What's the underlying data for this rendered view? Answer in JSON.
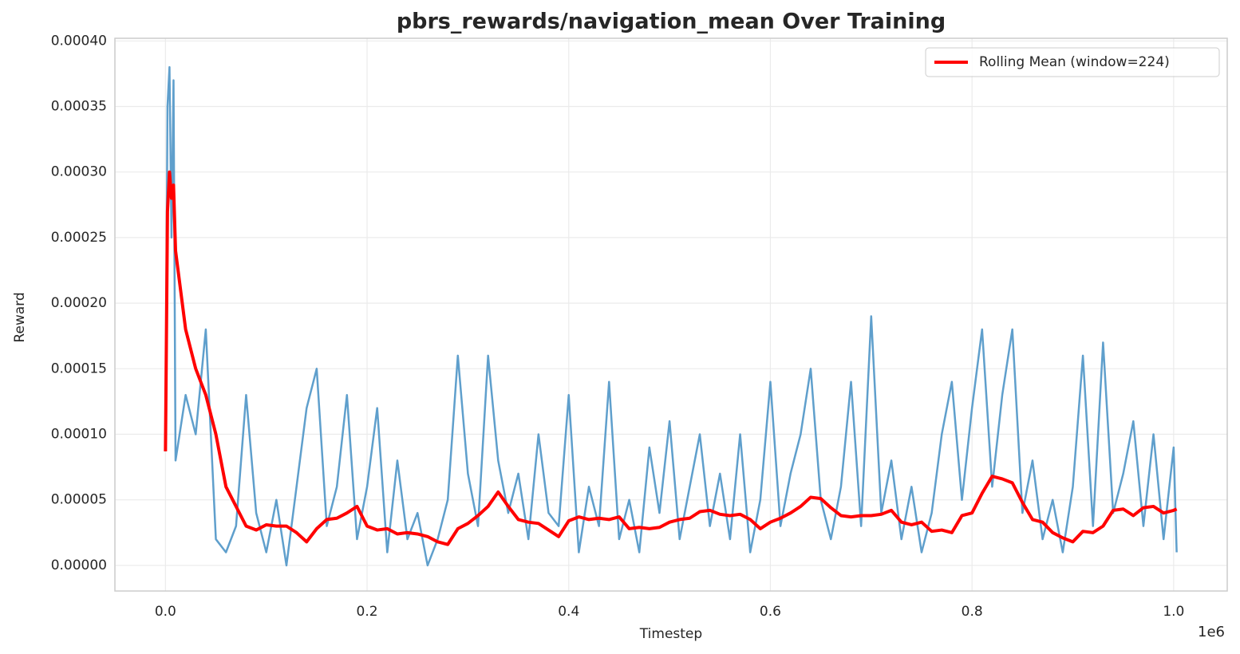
{
  "chart_data": {
    "type": "line",
    "title": "pbrs_rewards/navigation_mean Over Training",
    "x_label": "Timestep",
    "y_label": "Reward",
    "x_offset_label": "1e6",
    "x": [
      0,
      2000,
      4000,
      6000,
      8000,
      10000,
      20000,
      30000,
      40000,
      50000,
      60000,
      70000,
      80000,
      90000,
      100000,
      110000,
      120000,
      130000,
      140000,
      150000,
      160000,
      170000,
      180000,
      190000,
      200000,
      210000,
      220000,
      230000,
      240000,
      250000,
      260000,
      270000,
      280000,
      290000,
      300000,
      310000,
      320000,
      330000,
      340000,
      350000,
      360000,
      370000,
      380000,
      390000,
      400000,
      410000,
      420000,
      430000,
      440000,
      450000,
      460000,
      470000,
      480000,
      490000,
      500000,
      510000,
      520000,
      530000,
      540000,
      550000,
      560000,
      570000,
      580000,
      590000,
      600000,
      610000,
      620000,
      630000,
      640000,
      650000,
      660000,
      670000,
      680000,
      690000,
      700000,
      710000,
      720000,
      730000,
      740000,
      750000,
      760000,
      770000,
      780000,
      790000,
      800000,
      810000,
      820000,
      830000,
      840000,
      850000,
      860000,
      870000,
      880000,
      890000,
      900000,
      910000,
      920000,
      930000,
      940000,
      950000,
      960000,
      970000,
      980000,
      990000,
      1000000,
      1003000
    ],
    "series": [
      {
        "color": "#5f9fcc",
        "width": 2.5,
        "values": [
          8.7e-05,
          0.00035,
          0.00038,
          0.00025,
          0.00037,
          8e-05,
          0.00013,
          0.0001,
          0.00018,
          2e-05,
          1e-05,
          3e-05,
          0.00013,
          4e-05,
          1e-05,
          5e-05,
          0,
          6e-05,
          0.00012,
          0.00015,
          3e-05,
          6e-05,
          0.00013,
          2e-05,
          6e-05,
          0.00012,
          1e-05,
          8e-05,
          2e-05,
          4e-05,
          0,
          2e-05,
          5e-05,
          0.00016,
          7e-05,
          3e-05,
          0.00016,
          8e-05,
          4e-05,
          7e-05,
          2e-05,
          0.0001,
          4e-05,
          3e-05,
          0.00013,
          1e-05,
          6e-05,
          3e-05,
          0.00014,
          2e-05,
          5e-05,
          1e-05,
          9e-05,
          4e-05,
          0.00011,
          2e-05,
          6e-05,
          0.0001,
          3e-05,
          7e-05,
          2e-05,
          0.0001,
          1e-05,
          5e-05,
          0.00014,
          3e-05,
          7e-05,
          0.0001,
          0.00015,
          5e-05,
          2e-05,
          6e-05,
          0.00014,
          3e-05,
          0.00019,
          4e-05,
          8e-05,
          2e-05,
          6e-05,
          1e-05,
          4e-05,
          0.0001,
          0.00014,
          5e-05,
          0.00012,
          0.00018,
          6e-05,
          0.00013,
          0.00018,
          4e-05,
          8e-05,
          2e-05,
          5e-05,
          1e-05,
          6e-05,
          0.00016,
          3e-05,
          0.00017,
          4e-05,
          7e-05,
          0.00011,
          3e-05,
          0.0001,
          2e-05,
          9e-05,
          1e-05
        ]
      },
      {
        "name": "Rolling Mean (window=224)",
        "color": "#ff0000",
        "width": 4,
        "values": [
          8.7e-05,
          0.00027,
          0.0003,
          0.00028,
          0.00029,
          0.00024,
          0.00018,
          0.00015,
          0.00013,
          0.0001,
          6e-05,
          4.5e-05,
          3e-05,
          2.7e-05,
          3.1e-05,
          3e-05,
          3e-05,
          2.5e-05,
          1.8e-05,
          2.8e-05,
          3.5e-05,
          3.6e-05,
          4e-05,
          4.5e-05,
          3e-05,
          2.7e-05,
          2.8e-05,
          2.4e-05,
          2.5e-05,
          2.4e-05,
          2.2e-05,
          1.8e-05,
          1.6e-05,
          2.8e-05,
          3.2e-05,
          3.8e-05,
          4.5e-05,
          5.6e-05,
          4.5e-05,
          3.5e-05,
          3.3e-05,
          3.2e-05,
          2.7e-05,
          2.2e-05,
          3.4e-05,
          3.7e-05,
          3.5e-05,
          3.6e-05,
          3.5e-05,
          3.7e-05,
          2.8e-05,
          2.9e-05,
          2.8e-05,
          2.9e-05,
          3.3e-05,
          3.5e-05,
          3.6e-05,
          4.1e-05,
          4.2e-05,
          3.9e-05,
          3.8e-05,
          3.9e-05,
          3.5e-05,
          2.8e-05,
          3.3e-05,
          3.6e-05,
          4e-05,
          4.5e-05,
          5.2e-05,
          5.1e-05,
          4.4e-05,
          3.8e-05,
          3.7e-05,
          3.8e-05,
          3.8e-05,
          3.9e-05,
          4.2e-05,
          3.3e-05,
          3.1e-05,
          3.3e-05,
          2.6e-05,
          2.7e-05,
          2.5e-05,
          3.8e-05,
          4e-05,
          5.5e-05,
          6.8e-05,
          6.6e-05,
          6.3e-05,
          4.8e-05,
          3.5e-05,
          3.3e-05,
          2.5e-05,
          2.1e-05,
          1.8e-05,
          2.6e-05,
          2.5e-05,
          3e-05,
          4.2e-05,
          4.3e-05,
          3.8e-05,
          4.4e-05,
          4.5e-05,
          4e-05,
          4.2e-05,
          4.3e-05
        ]
      }
    ],
    "xlim": [
      -50150,
      1053150
    ],
    "xticks": [
      {
        "value": 0,
        "label": "0.0"
      },
      {
        "value": 200000,
        "label": "0.2"
      },
      {
        "value": 400000,
        "label": "0.4"
      },
      {
        "value": 600000,
        "label": "0.6"
      },
      {
        "value": 800000,
        "label": "0.8"
      },
      {
        "value": 1000000,
        "label": "1.0"
      }
    ],
    "ylim": [
      -1.95e-05,
      0.000402
    ],
    "yticks": [
      {
        "value": 0,
        "label": "0.00000"
      },
      {
        "value": 5e-05,
        "label": "0.00005"
      },
      {
        "value": 0.0001,
        "label": "0.00010"
      },
      {
        "value": 0.00015,
        "label": "0.00015"
      },
      {
        "value": 0.0002,
        "label": "0.00020"
      },
      {
        "value": 0.00025,
        "label": "0.00025"
      },
      {
        "value": 0.0003,
        "label": "0.00030"
      },
      {
        "value": 0.00035,
        "label": "0.00035"
      },
      {
        "value": 0.0004,
        "label": "0.00040"
      }
    ],
    "grid": true,
    "legend": "upper right"
  }
}
